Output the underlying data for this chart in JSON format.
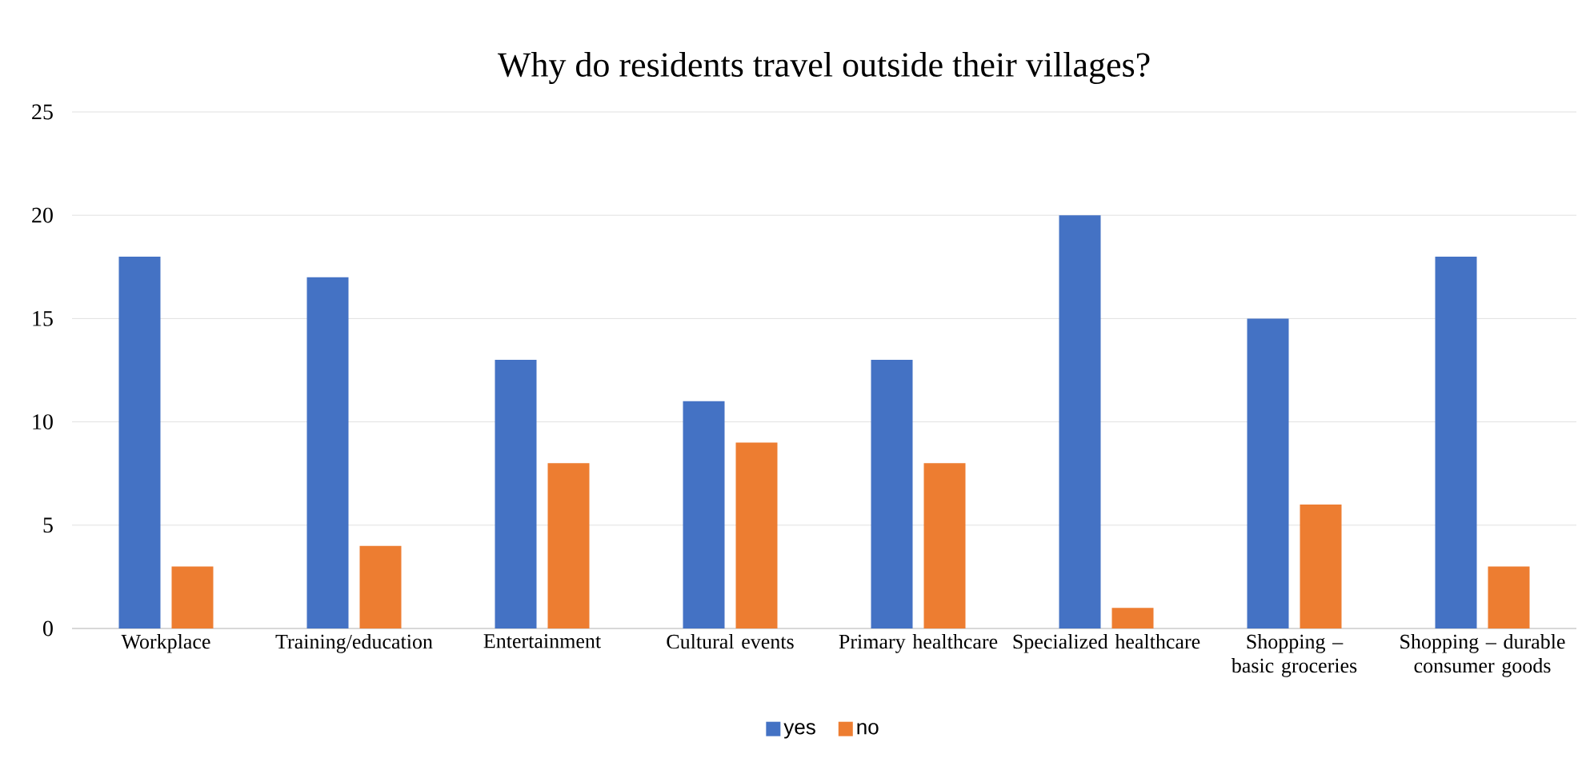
{
  "chart_data": {
    "type": "bar",
    "title": "Why do residents travel outside their villages?",
    "categories": [
      "Workplace",
      "Training/education",
      "Entertainment",
      "Cultural events",
      "Primary healthcare",
      "Specialized healthcare",
      "Shopping – basic groceries",
      "Shopping – durable consumer goods"
    ],
    "series": [
      {
        "name": "yes",
        "color": "#4472c4",
        "values": [
          18,
          17,
          13,
          11,
          13,
          20,
          15,
          18
        ]
      },
      {
        "name": "no",
        "color": "#ed7d31",
        "values": [
          3,
          4,
          8,
          9,
          8,
          1,
          6,
          3
        ]
      }
    ],
    "ylim": [
      0,
      25
    ],
    "yticks": [
      0,
      5,
      10,
      15,
      20,
      25
    ],
    "grid": "y",
    "legend": "bottom"
  }
}
